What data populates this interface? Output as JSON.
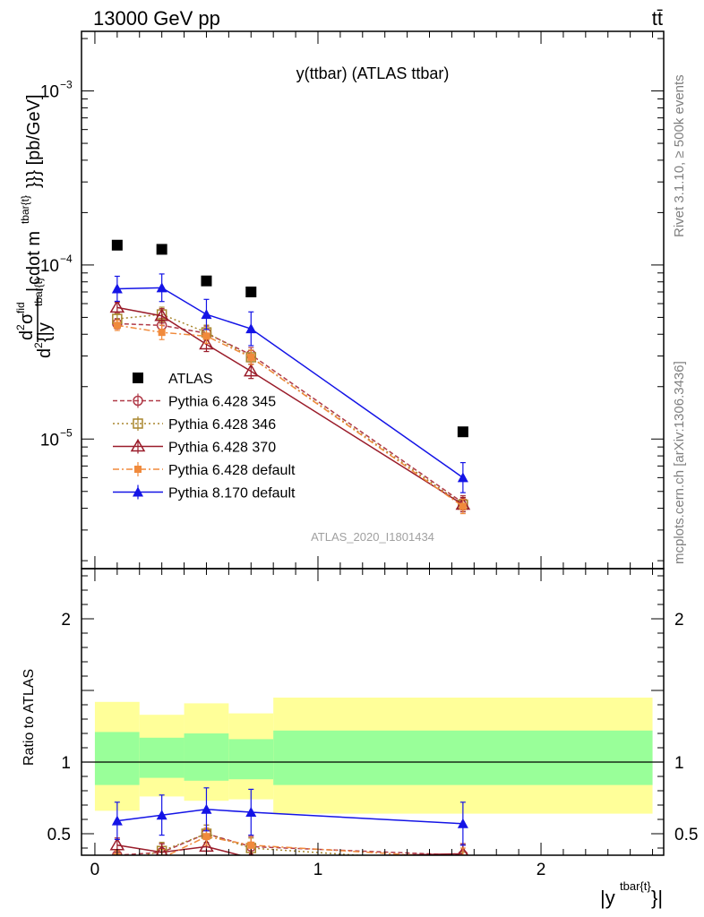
{
  "header": {
    "energy_label": "13000 GeV pp",
    "process_label": "tt̄",
    "plot_title": "y(ttbar) (ATLAS ttbar)",
    "analysis_id": "ATLAS_2020_I1801434",
    "rivet_label": "Rivet 3.1.10, ≥ 500k events",
    "site_label": "mcplots.cern.ch [arXiv:1306.3436]"
  },
  "chart_data": [
    {
      "type": "scatter",
      "name": "main",
      "ylabel": "d²σ^fid / d²{|y^tbar{t}| cdot m^tbar{t}}} [pb/GeV]",
      "yscale": "log",
      "ylim": [
        1.8e-06,
        0.0022
      ],
      "xlim": [
        -0.06,
        2.55
      ],
      "yticks": [
        {
          "value": 1e-05,
          "label": "10",
          "exp": "−5"
        },
        {
          "value": 0.0001,
          "label": "10",
          "exp": "−4"
        },
        {
          "value": 0.001,
          "label": "10",
          "exp": "−3"
        }
      ],
      "legend_position": "left-middle",
      "series": [
        {
          "name": "ATLAS",
          "color": "#000000",
          "marker": "square",
          "line": "none",
          "x": [
            0.1,
            0.3,
            0.5,
            0.7,
            1.65
          ],
          "y": [
            0.00013,
            0.000123,
            8.1e-05,
            7e-05,
            1.1e-05
          ]
        },
        {
          "name": "Pythia 6.428 345",
          "color": "#b03a48",
          "marker": "circle-open",
          "line": "dashed",
          "x": [
            0.1,
            0.3,
            0.5,
            0.7,
            1.65
          ],
          "y": [
            4.6e-05,
            4.5e-05,
            4.05e-05,
            3.05e-05,
            4.3e-06
          ],
          "err": [
            0.07,
            0.1,
            0.1,
            0.1,
            0.1
          ]
        },
        {
          "name": "Pythia 6.428 346",
          "color": "#a8862d",
          "marker": "square-open",
          "line": "dotted",
          "x": [
            0.1,
            0.3,
            0.5,
            0.7,
            1.65
          ],
          "y": [
            4.9e-05,
            5.2e-05,
            4.1e-05,
            2.95e-05,
            4.2e-06
          ],
          "err": [
            0.07,
            0.1,
            0.1,
            0.1,
            0.1
          ]
        },
        {
          "name": "Pythia 6.428 370",
          "color": "#9a1c2a",
          "marker": "triangle-open",
          "line": "solid",
          "x": [
            0.1,
            0.3,
            0.5,
            0.7,
            1.65
          ],
          "y": [
            5.7e-05,
            5.1e-05,
            3.5e-05,
            2.45e-05,
            4.2e-06
          ],
          "err": [
            0.07,
            0.1,
            0.1,
            0.1,
            0.1
          ]
        },
        {
          "name": "Pythia 6.428 default",
          "color": "#f08a3c",
          "marker": "square-filled",
          "line": "dashdot",
          "x": [
            0.1,
            0.3,
            0.5,
            0.7,
            1.65
          ],
          "y": [
            4.5e-05,
            4.1e-05,
            3.9e-05,
            2.95e-05,
            4.1e-06
          ],
          "err": [
            0.07,
            0.1,
            0.1,
            0.1,
            0.1
          ]
        },
        {
          "name": "Pythia 8.170 default",
          "color": "#1414e6",
          "marker": "triangle-filled",
          "line": "solid",
          "x": [
            0.1,
            0.3,
            0.5,
            0.7,
            1.65
          ],
          "y": [
            7.3e-05,
            7.4e-05,
            5.2e-05,
            4.3e-05,
            6e-06
          ],
          "err": [
            0.18,
            0.2,
            0.22,
            0.25,
            0.22
          ]
        }
      ]
    },
    {
      "type": "scatter",
      "name": "ratio",
      "ylabel": "Ratio to ATLAS",
      "xlabel": "|y^tbar{t}|",
      "ylim": [
        0.35,
        2.35
      ],
      "xlim": [
        -0.06,
        2.55
      ],
      "xticks": [
        {
          "value": 0,
          "label": "0"
        },
        {
          "value": 1,
          "label": "1"
        },
        {
          "value": 2,
          "label": "2"
        }
      ],
      "yticks": [
        {
          "value": 0.5,
          "label": "0.5"
        },
        {
          "value": 1,
          "label": "1"
        },
        {
          "value": 2,
          "label": "2"
        }
      ],
      "bands": [
        {
          "x0": 0.0,
          "x1": 0.2,
          "yellow": [
            0.66,
            1.42
          ],
          "green": [
            0.84,
            1.21
          ]
        },
        {
          "x0": 0.2,
          "x1": 0.4,
          "yellow": [
            0.76,
            1.33
          ],
          "green": [
            0.89,
            1.17
          ]
        },
        {
          "x0": 0.4,
          "x1": 0.6,
          "yellow": [
            0.73,
            1.41
          ],
          "green": [
            0.87,
            1.2
          ]
        },
        {
          "x0": 0.6,
          "x1": 0.8,
          "yellow": [
            0.74,
            1.34
          ],
          "green": [
            0.88,
            1.16
          ]
        },
        {
          "x0": 0.8,
          "x1": 2.5,
          "yellow": [
            0.64,
            1.45
          ],
          "green": [
            0.84,
            1.22
          ]
        }
      ],
      "series": [
        {
          "name": "Pythia 6.428 345",
          "color": "#b03a48",
          "marker": "circle-open",
          "line": "dashed",
          "x": [
            0.1,
            0.3,
            0.5,
            0.7,
            1.65
          ],
          "y": [
            0.35,
            0.37,
            0.5,
            0.41,
            0.35
          ],
          "err": [
            0.04,
            0.06,
            0.06,
            0.07,
            0.07
          ]
        },
        {
          "name": "Pythia 6.428 346",
          "color": "#a8862d",
          "marker": "square-open",
          "line": "dotted",
          "x": [
            0.1,
            0.3,
            0.5,
            0.7,
            1.65
          ],
          "y": [
            0.3,
            0.38,
            0.5,
            0.4,
            0.3
          ],
          "err": [
            0.04,
            0.06,
            0.06,
            0.07,
            0.07
          ]
        },
        {
          "name": "Pythia 6.428 370",
          "color": "#9a1c2a",
          "marker": "triangle-open",
          "line": "solid",
          "x": [
            0.1,
            0.3,
            0.5,
            0.7,
            1.65
          ],
          "y": [
            0.42,
            0.37,
            0.41,
            0.33,
            0.36
          ],
          "err": [
            0.05,
            0.06,
            0.06,
            0.07,
            0.07
          ]
        },
        {
          "name": "Pythia 6.428 default",
          "color": "#f08a3c",
          "marker": "square-filled",
          "line": "dashdot",
          "x": [
            0.1,
            0.3,
            0.5,
            0.7,
            1.65
          ],
          "y": [
            0.34,
            0.33,
            0.48,
            0.42,
            0.33
          ],
          "err": [
            0.04,
            0.06,
            0.06,
            0.07,
            0.07
          ]
        },
        {
          "name": "Pythia 8.170 default",
          "color": "#1414e6",
          "marker": "triangle-filled",
          "line": "solid",
          "x": [
            0.1,
            0.3,
            0.5,
            0.7,
            1.65
          ],
          "y": [
            0.59,
            0.63,
            0.67,
            0.65,
            0.57
          ],
          "err": [
            0.13,
            0.14,
            0.15,
            0.16,
            0.15
          ]
        }
      ]
    }
  ]
}
